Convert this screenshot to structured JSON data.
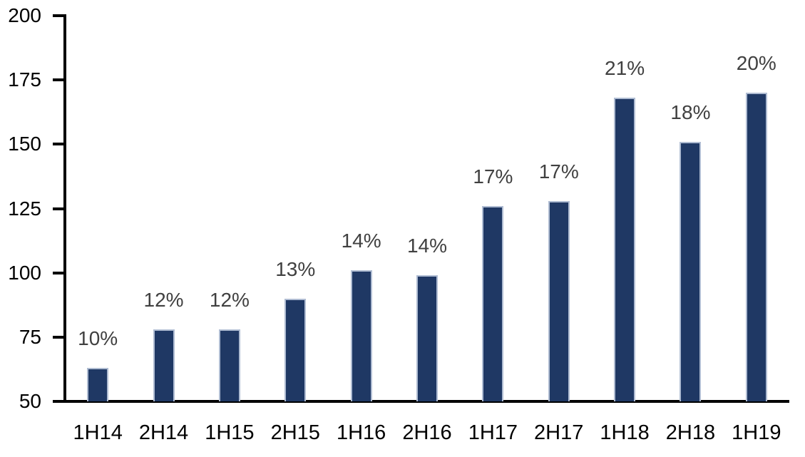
{
  "chart_data": {
    "type": "bar",
    "title": "",
    "xlabel": "",
    "ylabel": "",
    "categories": [
      "1H14",
      "2H14",
      "1H15",
      "2H15",
      "1H16",
      "2H16",
      "1H17",
      "2H17",
      "1H18",
      "2H18",
      "1H19"
    ],
    "values": [
      63,
      78,
      78,
      90,
      101,
      99,
      126,
      128,
      168,
      151,
      170
    ],
    "data_labels": [
      "10%",
      "12%",
      "12%",
      "13%",
      "14%",
      "14%",
      "17%",
      "17%",
      "21%",
      "18%",
      "20%"
    ],
    "ylim": [
      50,
      200
    ],
    "yticks": [
      50,
      75,
      100,
      125,
      150,
      175,
      200
    ],
    "grid": false,
    "legend": null,
    "colors": {
      "bar_fill": "#1F3864",
      "bar_border": "#AFBCD2",
      "axis": "#000000",
      "y_tick_label": "#000000",
      "x_tick_label": "#000000",
      "data_label": "#404040",
      "background": "#FFFFFF"
    }
  }
}
